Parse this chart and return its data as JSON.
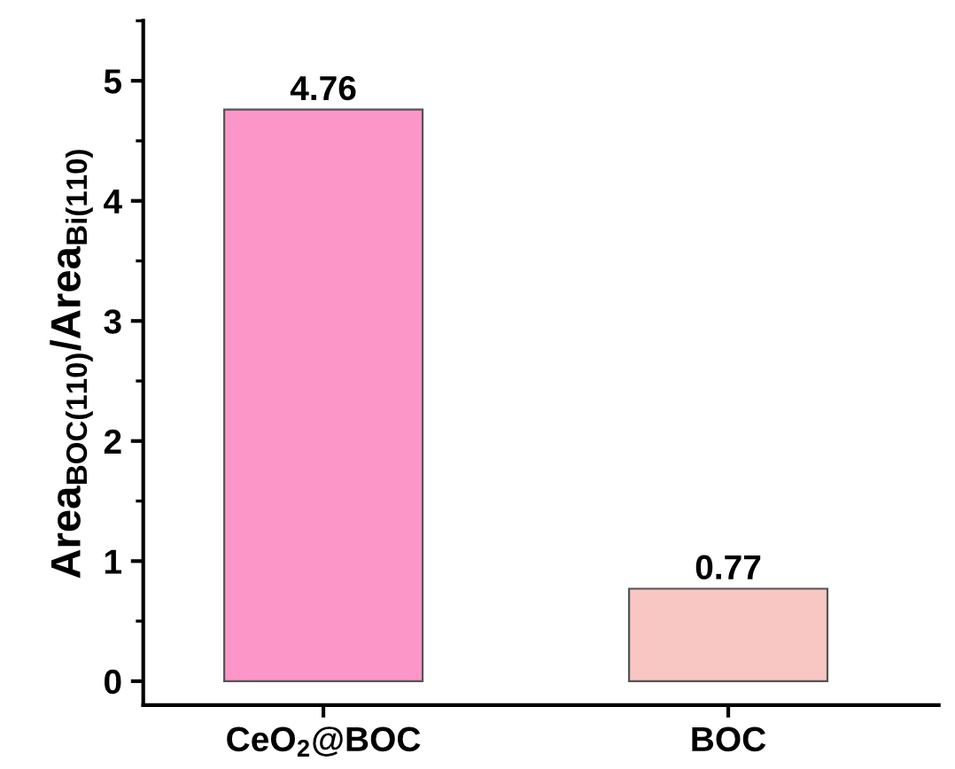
{
  "chart_data": {
    "type": "bar",
    "ylabel": "Area$_{BOC(110)}$/Area$_{Bi(110)}$",
    "categories": [
      "CeO$_{2}$@BOC",
      "BOC"
    ],
    "values": [
      4.76,
      0.77
    ],
    "colors": [
      "#fc96c8",
      "#f8c7c3"
    ],
    "ylim": [
      -0.2,
      5.5
    ],
    "yticks": [
      0,
      1,
      2,
      3,
      4,
      5
    ],
    "data_labels": true,
    "grid": false,
    "legend": false
  }
}
